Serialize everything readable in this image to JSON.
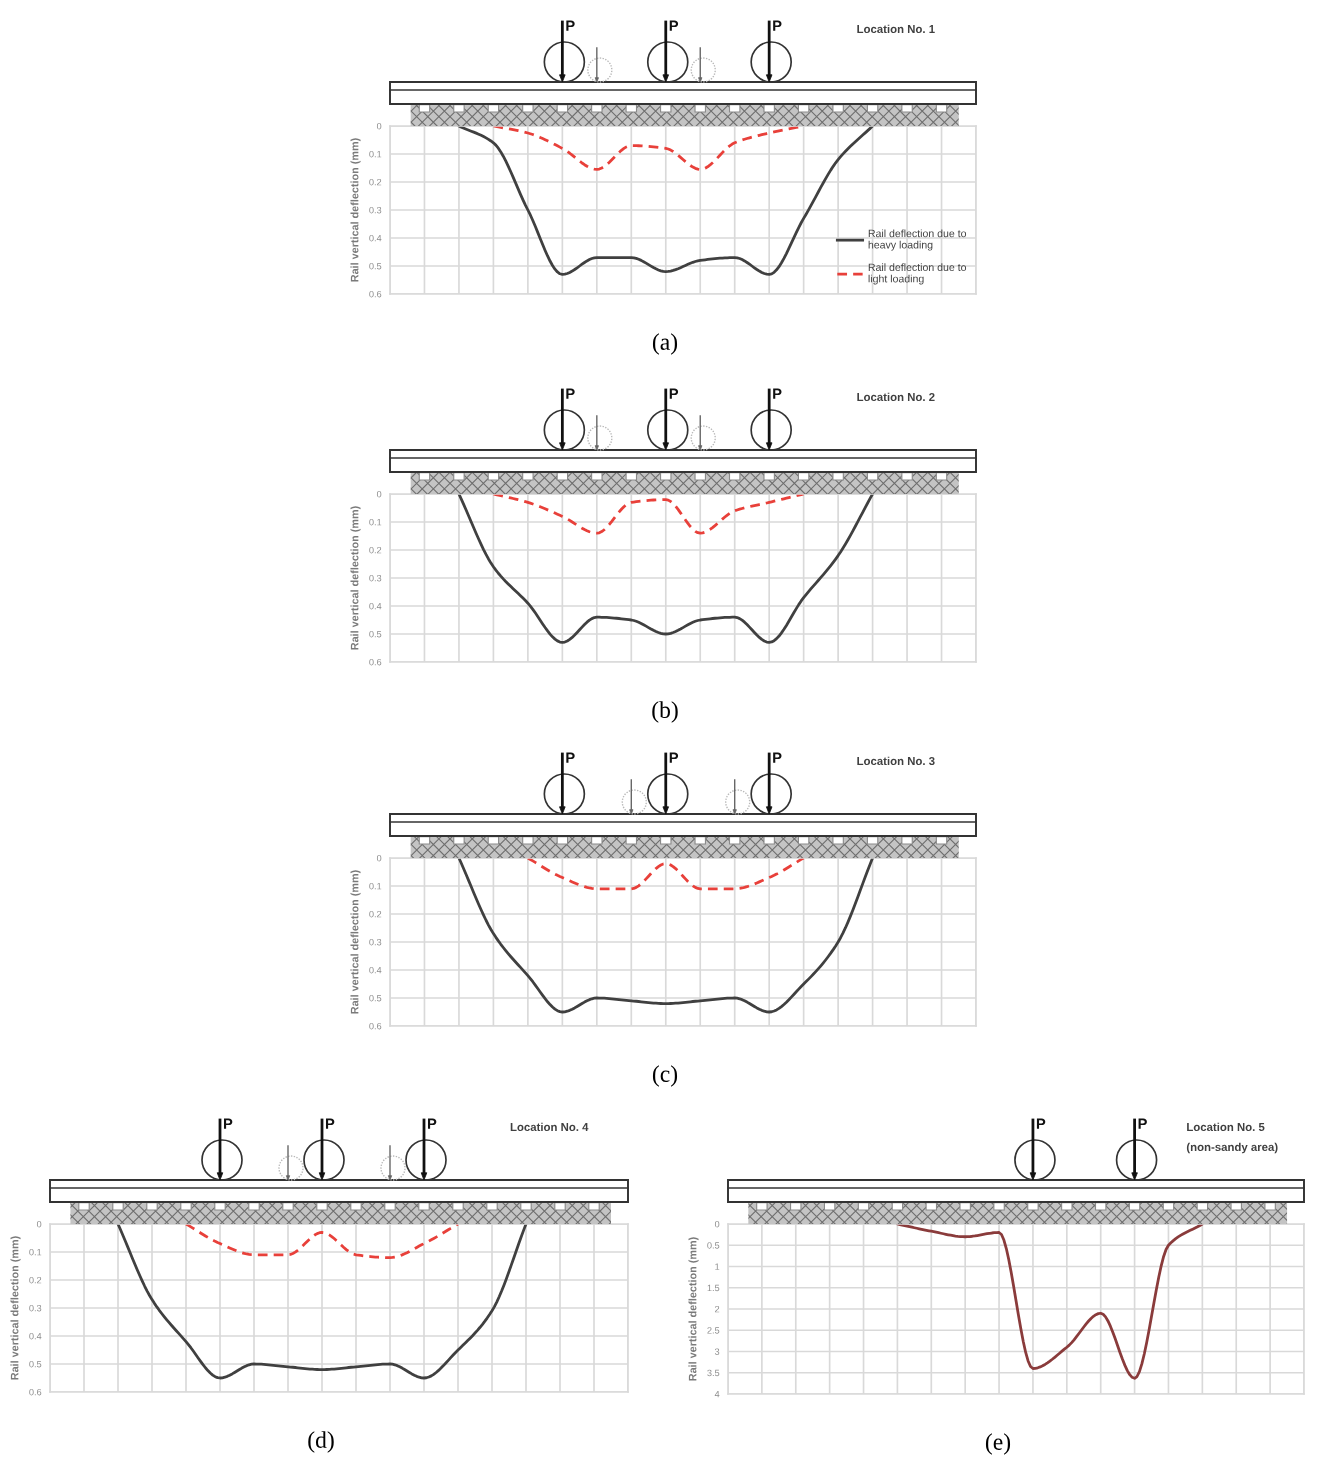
{
  "chart_data": [
    {
      "type": "line",
      "title": "Location No. 1",
      "ylabel": "Rail vertical deflection (mm)",
      "categories": [
        null,
        null,
        null,
        null,
        null,
        null,
        null,
        null,
        null,
        null,
        null,
        null,
        null
      ],
      "series": [
        {
          "name": "Rail deflection due to\nheavy loading",
          "color": "#404040",
          "line_style": "solid",
          "values": [
            0,
            0.06,
            0.3,
            0.53,
            0.47,
            0.47,
            0.52,
            0.48,
            0.47,
            0.53,
            0.33,
            0.12,
            0
          ]
        },
        {
          "name": "Rail deflection due to\nlight loading",
          "color": "#e8403a",
          "line_style": "dashed",
          "values": [
            null,
            0,
            0.025,
            0.08,
            0.155,
            0.07,
            0.08,
            0.155,
            0.06,
            0.025,
            0,
            null,
            null
          ]
        }
      ],
      "ylim": [
        0.6,
        0
      ],
      "yticks": [
        0,
        0.1,
        0.2,
        0.3,
        0.4,
        0.5,
        0.6
      ],
      "grid": true,
      "legend": "bottom right",
      "tick_labels": "y",
      "annotations": [
        "P",
        "P",
        "P",
        "(a)"
      ]
    },
    {
      "type": "line",
      "title": "Location No. 2",
      "ylabel": "Rail vertical deflection (mm)",
      "categories": [
        null,
        null,
        null,
        null,
        null,
        null,
        null,
        null,
        null,
        null,
        null,
        null,
        null
      ],
      "series": [
        {
          "color": "#404040",
          "line_style": "solid",
          "values": [
            0,
            0.26,
            0.39,
            0.53,
            0.44,
            0.45,
            0.5,
            0.45,
            0.44,
            0.53,
            0.37,
            0.22,
            0
          ]
        },
        {
          "color": "#e8403a",
          "line_style": "dashed",
          "values": [
            null,
            0,
            0.03,
            0.08,
            0.14,
            0.03,
            0.02,
            0.14,
            0.06,
            0.03,
            0,
            null,
            null
          ]
        }
      ],
      "ylim": [
        0.6,
        0
      ],
      "yticks": [
        0,
        0.1,
        0.2,
        0.3,
        0.4,
        0.5,
        0.6
      ],
      "grid": true,
      "tick_labels": "y",
      "annotations": [
        "P",
        "P",
        "P",
        "(b)"
      ]
    },
    {
      "type": "line",
      "title": "Location No. 3",
      "ylabel": "Rail vertical deflection (mm)",
      "categories": [
        null,
        null,
        null,
        null,
        null,
        null,
        null,
        null,
        null,
        null,
        null,
        null,
        null
      ],
      "series": [
        {
          "color": "#404040",
          "line_style": "solid",
          "values": [
            0,
            0.27,
            0.42,
            0.55,
            0.5,
            0.51,
            0.52,
            0.51,
            0.5,
            0.55,
            0.45,
            0.3,
            0
          ]
        },
        {
          "color": "#e8403a",
          "line_style": "dashed",
          "values": [
            null,
            null,
            0,
            0.07,
            0.11,
            0.11,
            0.02,
            0.11,
            0.11,
            0.07,
            0,
            null,
            null
          ]
        }
      ],
      "ylim": [
        0.6,
        0
      ],
      "yticks": [
        0,
        0.1,
        0.2,
        0.3,
        0.4,
        0.5,
        0.6
      ],
      "grid": true,
      "tick_labels": "y",
      "annotations": [
        "P",
        "P",
        "P",
        "(c)"
      ]
    },
    {
      "type": "line",
      "title": "Location No. 4",
      "ylabel": "Rail vertical deflection (mm)",
      "categories": [
        null,
        null,
        null,
        null,
        null,
        null,
        null,
        null,
        null,
        null,
        null,
        null,
        null
      ],
      "series": [
        {
          "color": "#404040",
          "line_style": "solid",
          "values": [
            0,
            0.27,
            0.42,
            0.55,
            0.5,
            0.51,
            0.52,
            0.51,
            0.5,
            0.55,
            0.45,
            0.31,
            0
          ]
        },
        {
          "color": "#e8403a",
          "line_style": "dashed",
          "values": [
            null,
            null,
            0,
            0.07,
            0.11,
            0.11,
            0.03,
            0.11,
            0.12,
            0.07,
            0,
            null,
            null
          ]
        }
      ],
      "ylim": [
        0.6,
        0
      ],
      "yticks": [
        0,
        0.1,
        0.2,
        0.3,
        0.4,
        0.5,
        0.6
      ],
      "grid": true,
      "tick_labels": "y",
      "annotations": [
        "P",
        "P",
        "P",
        "(d)"
      ]
    },
    {
      "type": "line",
      "title": "Location No. 5",
      "subtitle": "(non-sandy area)",
      "ylabel": "Rail vertical deflection (mm)",
      "categories": [
        null,
        null,
        null,
        null,
        null,
        null,
        null,
        null,
        null,
        null
      ],
      "series": [
        {
          "color": "#8a3b3b",
          "line_style": "solid",
          "values": [
            0,
            0.17,
            0.3,
            0.2,
            3.4,
            2.9,
            2.1,
            3.63,
            0.5,
            0
          ]
        }
      ],
      "ylim": [
        4,
        0
      ],
      "yticks": [
        0,
        0.5,
        1,
        1.5,
        2,
        2.5,
        3,
        3.5,
        4
      ],
      "grid": true,
      "tick_labels": "y",
      "annotations": [
        "P",
        "P",
        "(e)"
      ]
    }
  ]
}
